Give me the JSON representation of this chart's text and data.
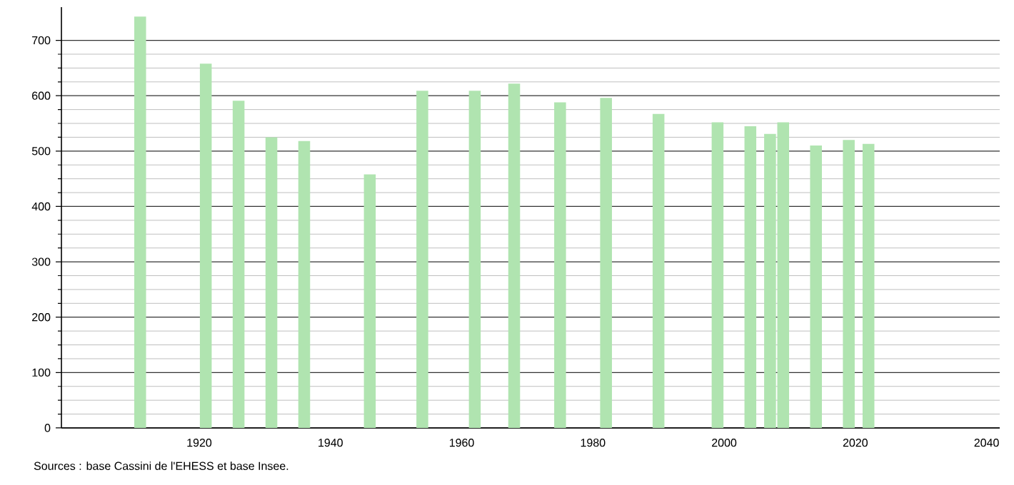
{
  "chart_data": {
    "type": "bar",
    "x": [
      1911,
      1921,
      1926,
      1931,
      1936,
      1946,
      1954,
      1962,
      1968,
      1975,
      1982,
      1990,
      1999,
      2004,
      2007,
      2009,
      2014,
      2019,
      2022
    ],
    "values": [
      743,
      658,
      591,
      525,
      518,
      458,
      609,
      609,
      622,
      588,
      596,
      567,
      552,
      545,
      531,
      552,
      510,
      520,
      513
    ],
    "color": "#b0e4b0",
    "xlim": [
      1899,
      2042
    ],
    "xticks": [
      1920,
      1940,
      1960,
      1980,
      2000,
      2020,
      2040
    ],
    "ylim": [
      0,
      760
    ],
    "yticks": [
      0,
      100,
      200,
      300,
      400,
      500,
      600,
      700
    ],
    "grid": "y",
    "annotations": [
      "Sources : base Cassini de l'EHESS et base Insee."
    ]
  }
}
